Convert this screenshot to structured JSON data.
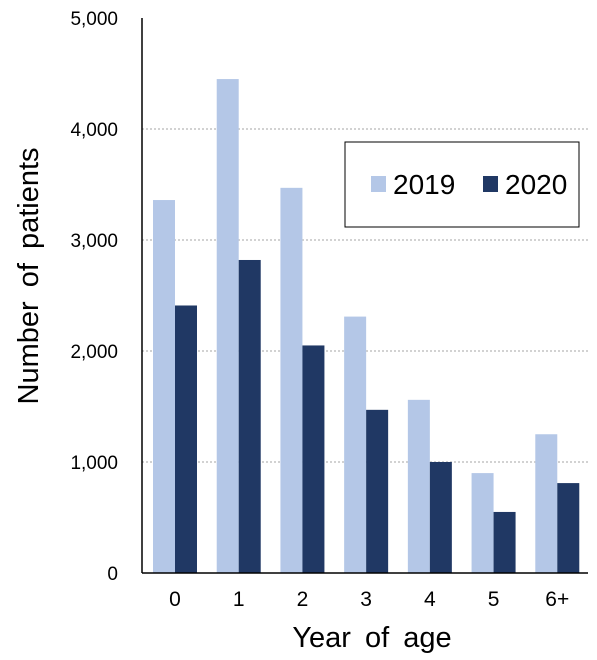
{
  "chart_data": {
    "type": "bar",
    "categories": [
      "0",
      "1",
      "2",
      "3",
      "4",
      "5",
      "6+"
    ],
    "series": [
      {
        "name": "2019",
        "color": "#b4c7e7",
        "values": [
          3360,
          4450,
          3470,
          2310,
          1560,
          900,
          1250
        ]
      },
      {
        "name": "2020",
        "color": "#203864",
        "values": [
          2410,
          2820,
          2050,
          1470,
          1000,
          550,
          810
        ]
      }
    ],
    "xlabel": "Year of age",
    "ylabel": "Number of patients",
    "ylim": [
      0,
      5000
    ],
    "yticks": [
      {
        "value": 0,
        "label": "0"
      },
      {
        "value": 1000,
        "label": "1,000"
      },
      {
        "value": 2000,
        "label": "2,000"
      },
      {
        "value": 3000,
        "label": "3,000"
      },
      {
        "value": 4000,
        "label": "4,000"
      },
      {
        "value": 5000,
        "label": "5,000"
      }
    ],
    "grid": "horizontal dotted",
    "legend_position": "top-right"
  }
}
